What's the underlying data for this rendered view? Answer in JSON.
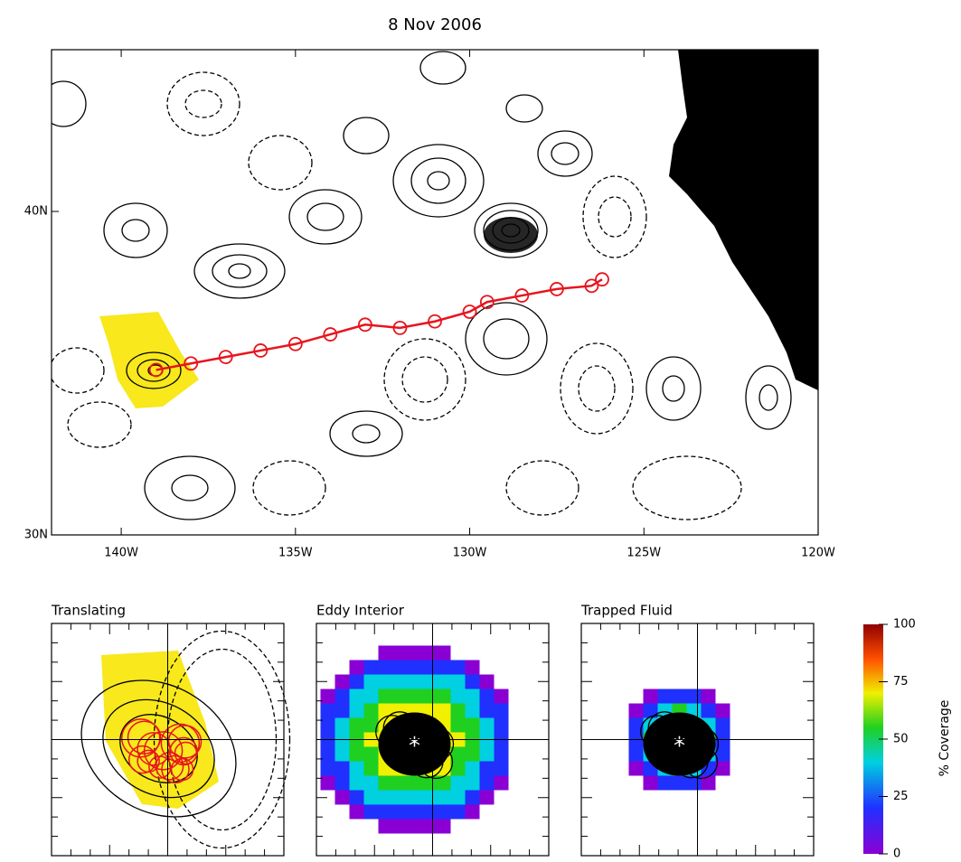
{
  "chart_data": {
    "type": "map",
    "title": "8  Nov 2006",
    "xlim": [
      -142,
      -120
    ],
    "ylim": [
      30,
      45
    ],
    "xticks": [
      {
        "value": -140,
        "label": "140W"
      },
      {
        "value": -135,
        "label": "135W"
      },
      {
        "value": -130,
        "label": "130W"
      },
      {
        "value": -125,
        "label": "125W"
      },
      {
        "value": -120,
        "label": "120W"
      }
    ],
    "yticks": [
      {
        "value": 30,
        "label": "30N"
      },
      {
        "value": 40,
        "label": "40N"
      }
    ],
    "land_color": "#000000",
    "track": {
      "color": "#e8141c",
      "x": [
        -139.0,
        -138.0,
        -137.0,
        -136.0,
        -135.0,
        -134.0,
        -133.0,
        -132.0,
        -131.0,
        -130.0,
        -129.5,
        -128.5,
        -127.5,
        -126.5,
        -126.2
      ],
      "y": [
        35.1,
        35.3,
        35.5,
        35.7,
        35.9,
        36.2,
        36.5,
        36.4,
        36.6,
        36.9,
        37.2,
        37.4,
        37.6,
        37.7,
        37.9
      ]
    },
    "panels": [
      {
        "title": "Translating"
      },
      {
        "title": "Eddy Interior"
      },
      {
        "title": "Trapped Fluid"
      }
    ],
    "colorbar": {
      "label": "% Coverage",
      "ylim": [
        0,
        100
      ],
      "yticks": [
        0,
        25,
        50,
        75,
        100
      ]
    }
  }
}
